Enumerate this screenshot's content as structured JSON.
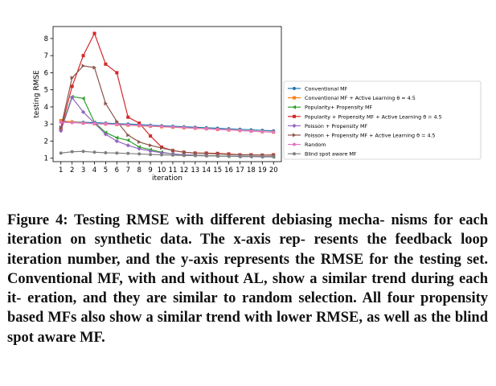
{
  "chart_data": {
    "type": "line",
    "xlabel": "iteration",
    "ylabel": "testing RMSE",
    "xlim": [
      0.3,
      20.7
    ],
    "ylim": [
      0.8,
      8.7
    ],
    "x": [
      1,
      2,
      3,
      4,
      5,
      6,
      7,
      8,
      9,
      10,
      11,
      12,
      13,
      14,
      15,
      16,
      17,
      18,
      19,
      20
    ],
    "x_ticks": [
      "1",
      "2",
      "3",
      "4",
      "5",
      "6",
      "7",
      "8",
      "9",
      "10",
      "11",
      "12",
      "13",
      "14",
      "15",
      "16",
      "17",
      "18",
      "19",
      "20"
    ],
    "y_ticks": [
      "1",
      "2",
      "3",
      "4",
      "5",
      "6",
      "7",
      "8"
    ],
    "grid": false,
    "legend_position": "right",
    "series": [
      {
        "name": "Conventional MF",
        "color": "#1f77b4",
        "marker": "circle",
        "values": [
          3.15,
          3.12,
          3.1,
          3.08,
          3.05,
          3.02,
          3.0,
          2.97,
          2.93,
          2.9,
          2.87,
          2.84,
          2.81,
          2.78,
          2.75,
          2.72,
          2.69,
          2.66,
          2.63,
          2.6
        ]
      },
      {
        "name": "Conventional MF + Active Learning θ = 4.5",
        "color": "#ff7f0e",
        "marker": "square",
        "values": [
          3.2,
          3.12,
          3.05,
          3.02,
          3.0,
          2.97,
          2.93,
          2.9,
          2.87,
          2.84,
          2.81,
          2.78,
          2.75,
          2.72,
          2.68,
          2.65,
          2.62,
          2.58,
          2.55,
          2.52
        ]
      },
      {
        "name": "Popularity+ Propensity MF",
        "color": "#2ca02c",
        "marker": "triangle-left",
        "values": [
          2.7,
          4.6,
          4.5,
          3.1,
          2.5,
          2.2,
          2.05,
          1.65,
          1.5,
          1.35,
          1.25,
          1.2,
          1.18,
          1.15,
          1.13,
          1.12,
          1.1,
          1.1,
          1.1,
          1.08
        ]
      },
      {
        "name": "Popularity + Propensity MF + Active Learning θ = 4.5",
        "color": "#d62728",
        "marker": "square",
        "values": [
          2.7,
          5.2,
          7.0,
          8.3,
          6.5,
          6.0,
          3.4,
          3.05,
          2.3,
          1.65,
          1.45,
          1.35,
          1.3,
          1.3,
          1.28,
          1.25,
          1.2,
          1.2,
          1.18,
          1.2
        ]
      },
      {
        "name": "Poisson + Propensity MF",
        "color": "#9467bd",
        "marker": "diamond",
        "values": [
          2.6,
          4.55,
          3.7,
          3.05,
          2.4,
          2.0,
          1.75,
          1.55,
          1.42,
          1.32,
          1.25,
          1.2,
          1.17,
          1.15,
          1.13,
          1.12,
          1.1,
          1.1,
          1.08,
          1.08
        ]
      },
      {
        "name": "Poisson + Propensity MF + Active Learning θ = 4.5",
        "color": "#8c564b",
        "marker": "triangle-right",
        "values": [
          2.8,
          5.7,
          6.4,
          6.3,
          4.2,
          3.15,
          2.35,
          1.95,
          1.75,
          1.6,
          1.45,
          1.35,
          1.3,
          1.28,
          1.25,
          1.22,
          1.2,
          1.2,
          1.18,
          1.18
        ]
      },
      {
        "name": "Random",
        "color": "#e377c2",
        "marker": "circle",
        "values": [
          3.1,
          3.08,
          3.05,
          3.02,
          3.0,
          2.97,
          2.94,
          2.91,
          2.88,
          2.85,
          2.82,
          2.79,
          2.75,
          2.72,
          2.68,
          2.65,
          2.62,
          2.58,
          2.55,
          2.52
        ]
      },
      {
        "name": "Blind spot aware MF",
        "color": "#7f7f7f",
        "marker": "circle",
        "values": [
          1.3,
          1.38,
          1.4,
          1.35,
          1.32,
          1.3,
          1.28,
          1.25,
          1.22,
          1.2,
          1.18,
          1.16,
          1.15,
          1.14,
          1.13,
          1.12,
          1.12,
          1.11,
          1.1,
          1.1
        ]
      }
    ]
  },
  "caption": {
    "line1": "Figure 4: Testing RMSE with different debiasing mecha-",
    "line2": "nisms for each iteration on synthetic data. The x-axis rep-",
    "line3": "resents the feedback loop iteration number, and the y-axis",
    "line4": "represents the RMSE for the testing set. Conventional MF,",
    "line5": "with and without AL, show a similar trend during each it-",
    "line6": "eration, and they are similar to random selection. All four",
    "line7": "propensity based MFs also show a similar trend with lower",
    "line8": "RMSE, as well as the blind spot aware MF."
  }
}
